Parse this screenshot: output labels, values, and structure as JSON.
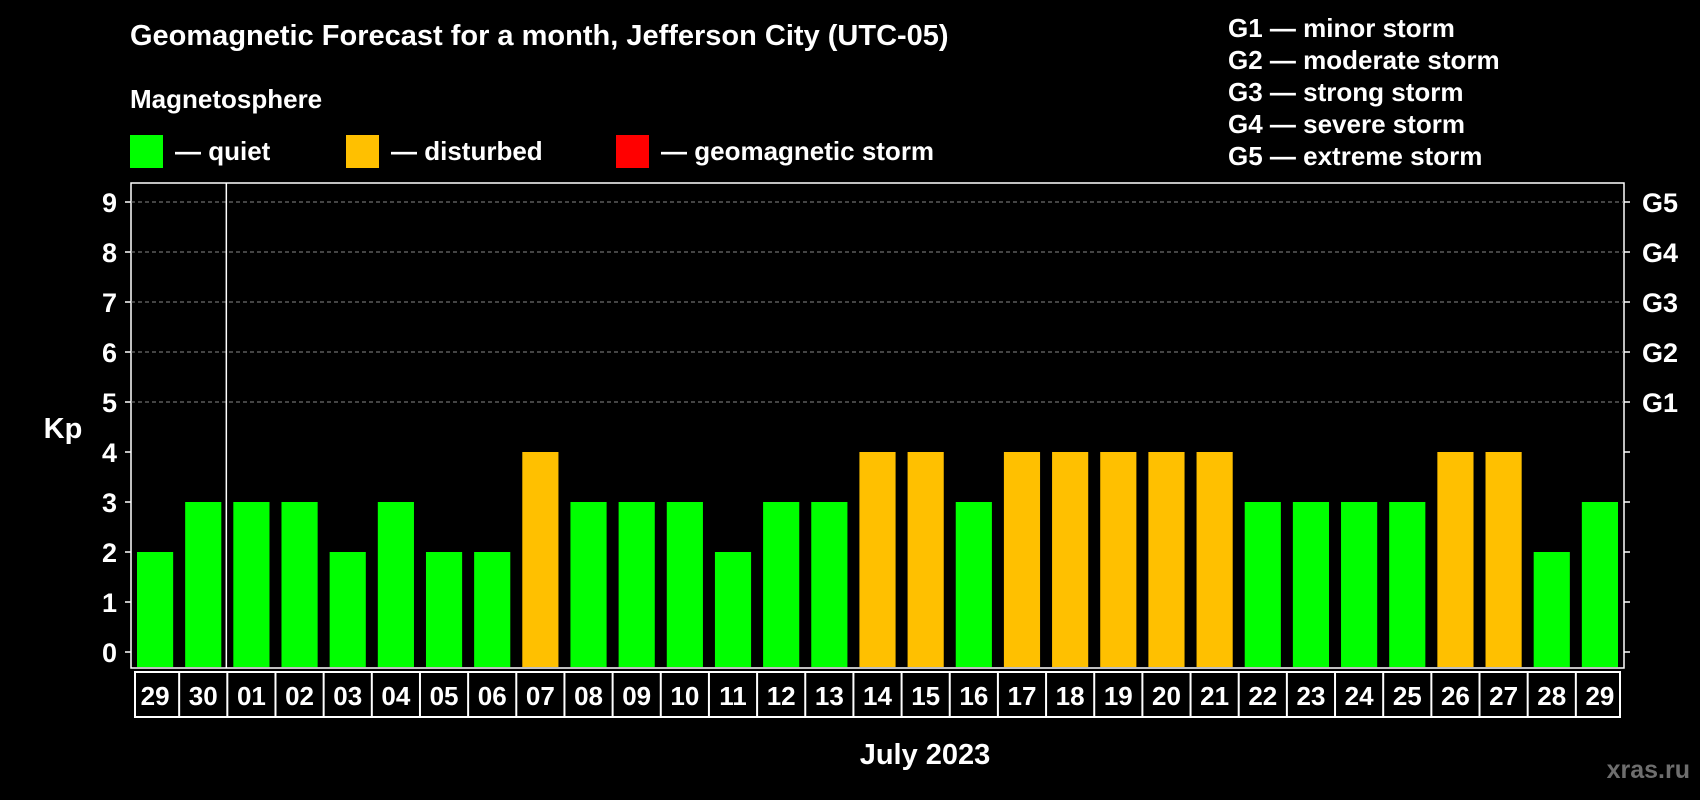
{
  "title": "Geomagnetic Forecast for a month, Jefferson City (UTC-05)",
  "subtitle": "Magnetosphere",
  "legend": [
    {
      "label": "— quiet",
      "color": "#00ff00"
    },
    {
      "label": "— disturbed",
      "color": "#ffc000"
    },
    {
      "label": "— geomagnetic storm",
      "color": "#ff0000"
    }
  ],
  "g_scale": [
    "G1 — minor storm",
    "G2 — moderate storm",
    "G3 — strong storm",
    "G4 — severe storm",
    "G5 — extreme storm"
  ],
  "watermark": "xras.ru",
  "chart_data": {
    "type": "bar",
    "title": "Geomagnetic Forecast for a month, Jefferson City (UTC-05)",
    "xlabel": "July 2023",
    "ylabel": "Kp",
    "ylim": [
      0,
      9
    ],
    "yticks": [
      0,
      1,
      2,
      3,
      4,
      5,
      6,
      7,
      8,
      9
    ],
    "right_axis_labels": [
      {
        "value": 5,
        "label": "G1"
      },
      {
        "value": 6,
        "label": "G2"
      },
      {
        "value": 7,
        "label": "G3"
      },
      {
        "value": 8,
        "label": "G4"
      },
      {
        "value": 9,
        "label": "G5"
      }
    ],
    "grid": "dashed horizontal lines at Kp 5–9",
    "categories": [
      "29",
      "30",
      "01",
      "02",
      "03",
      "04",
      "05",
      "06",
      "07",
      "08",
      "09",
      "10",
      "11",
      "12",
      "13",
      "14",
      "15",
      "16",
      "17",
      "18",
      "19",
      "20",
      "21",
      "22",
      "23",
      "24",
      "25",
      "26",
      "27",
      "28",
      "29"
    ],
    "values": [
      2,
      3,
      3,
      3,
      2,
      3,
      2,
      2,
      4,
      3,
      3,
      3,
      2,
      3,
      3,
      4,
      4,
      3,
      4,
      4,
      4,
      4,
      4,
      3,
      3,
      3,
      3,
      4,
      4,
      2,
      3
    ],
    "month_divider_after_index": 1,
    "colors": {
      "quiet": "#00ff00",
      "disturbed": "#ffc000",
      "storm": "#ff0000"
    },
    "thresholds": {
      "disturbed_at": 4,
      "storm_at": 5
    }
  }
}
